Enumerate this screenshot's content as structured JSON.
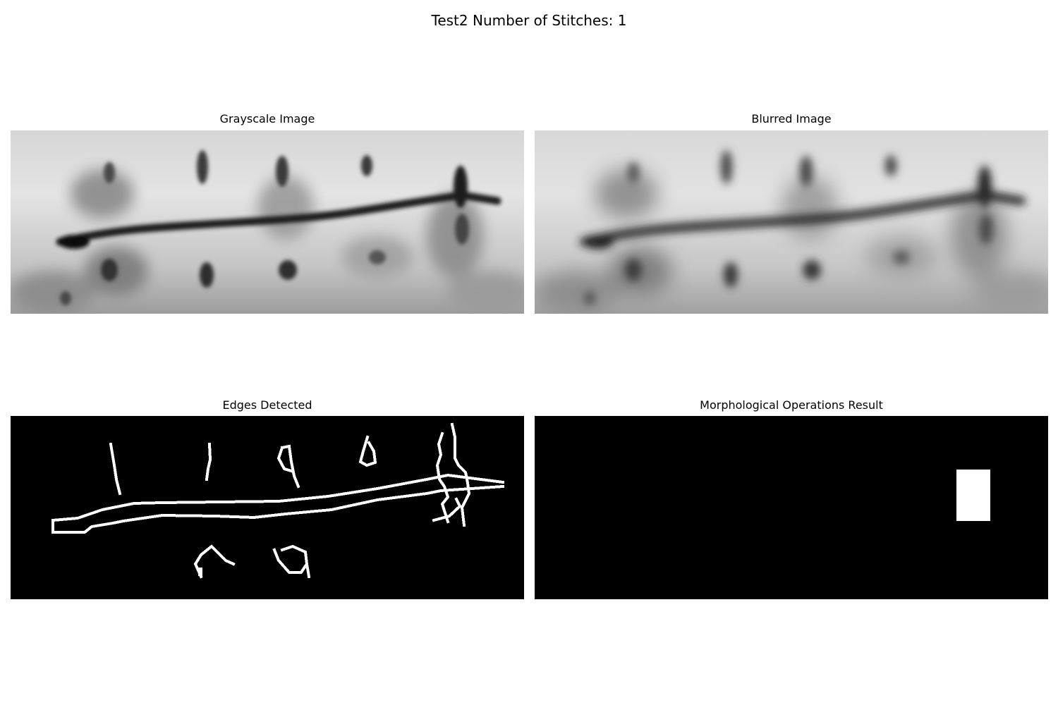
{
  "figure": {
    "title": "Test2 Number of Stitches: 1"
  },
  "panels": {
    "grayscale": {
      "title": "Grayscale Image"
    },
    "blurred": {
      "title": "Blurred Image"
    },
    "edges": {
      "title": "Edges Detected"
    },
    "morphology": {
      "title": "Morphological Operations Result"
    }
  },
  "colors": {
    "background": "#ffffff",
    "mask_background": "#000000",
    "mask_foreground": "#ffffff"
  }
}
